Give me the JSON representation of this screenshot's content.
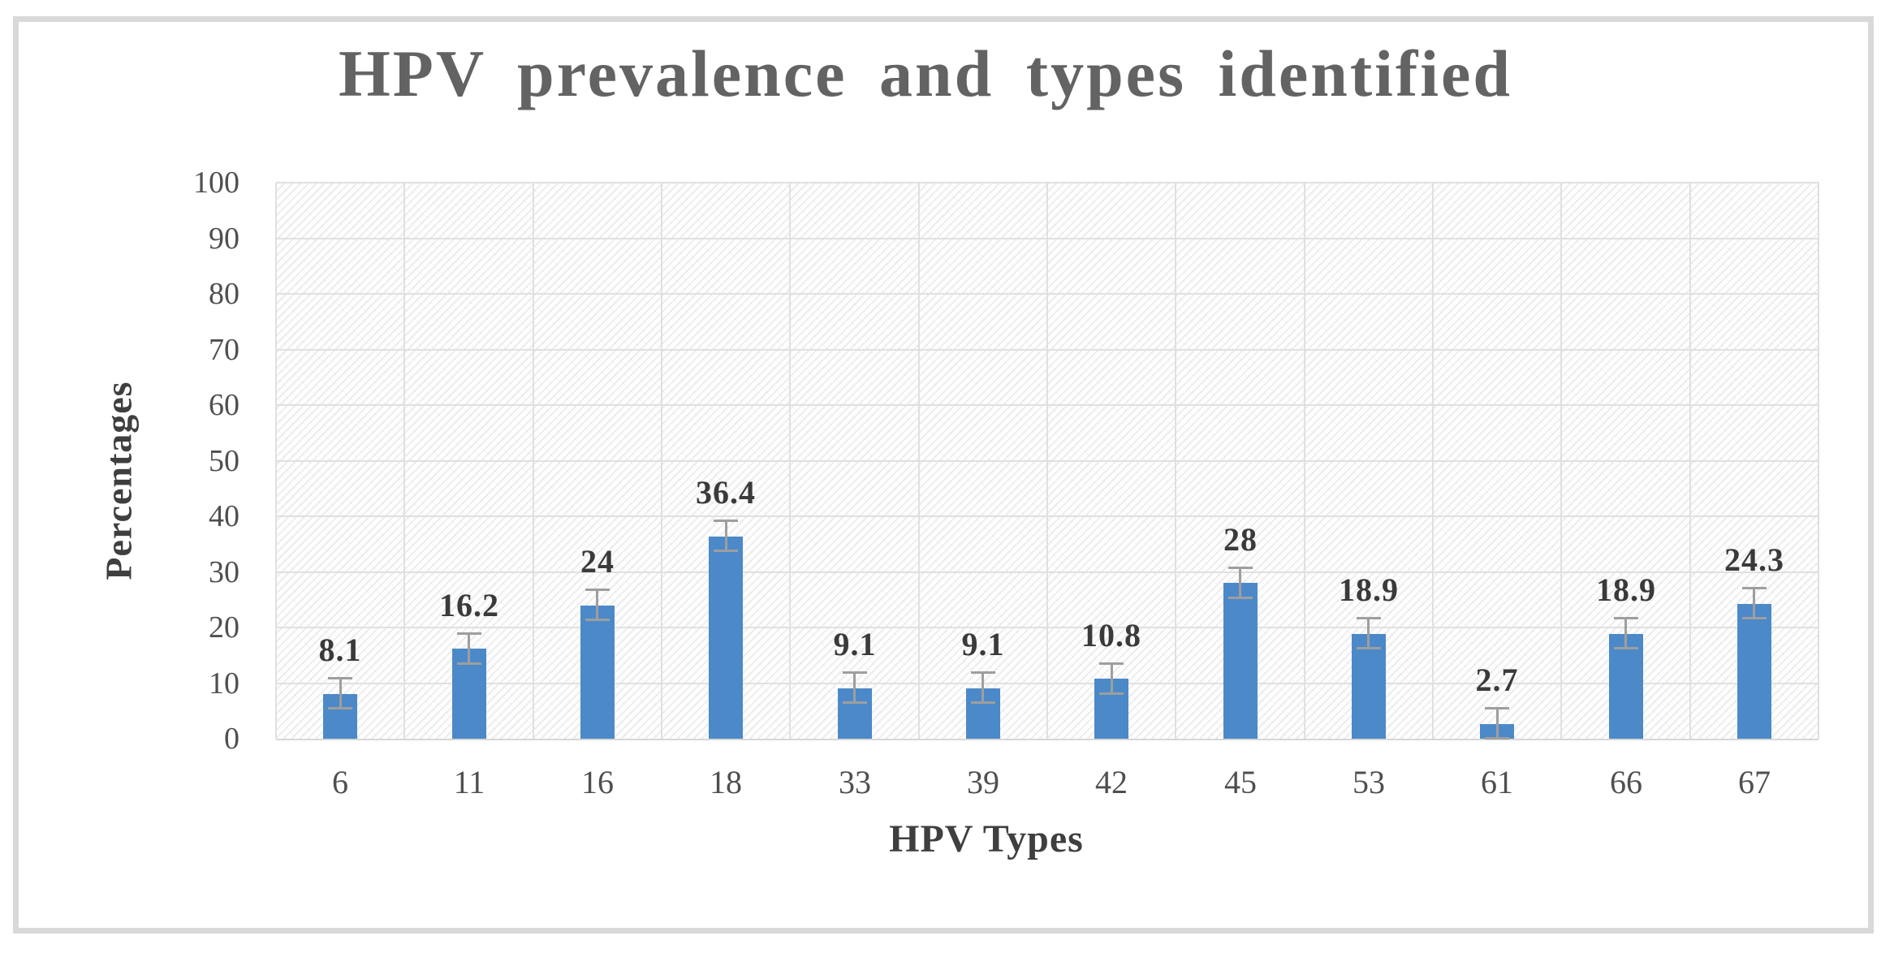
{
  "chart_data": {
    "type": "bar",
    "title": "HPV prevalence and types identified",
    "xlabel": "HPV Types",
    "ylabel": "Percentages",
    "categories": [
      "6",
      "11",
      "16",
      "18",
      "33",
      "39",
      "42",
      "45",
      "53",
      "61",
      "66",
      "67"
    ],
    "values": [
      8.1,
      16.2,
      24,
      36.4,
      9.1,
      9.1,
      10.8,
      28,
      18.9,
      2.7,
      18.9,
      24.3
    ],
    "data_labels": [
      "8.1",
      "16.2",
      "24",
      "36.4",
      "9.1",
      "9.1",
      "10.8",
      "28",
      "18.9",
      "2.7",
      "18.9",
      "24.3"
    ],
    "error_bar_plus_minus": 2.7,
    "ylim": [
      0,
      100
    ],
    "ytick_step": 10,
    "yticks": [
      "0",
      "10",
      "20",
      "30",
      "40",
      "50",
      "60",
      "70",
      "80",
      "90",
      "100"
    ],
    "grid": true,
    "legend_position": "none",
    "colors": {
      "bar": "#4C89C8",
      "error_bar": "#9e9e9e",
      "grid_line": "#e0e0e0",
      "title_text": "#636363",
      "axis_title_text": "#3f3f3f",
      "tick_text": "#4f4f4f",
      "data_label_text": "#3a3a3a",
      "frame_border": "#d9d9d9",
      "plot_hatch": "#ececec"
    }
  }
}
